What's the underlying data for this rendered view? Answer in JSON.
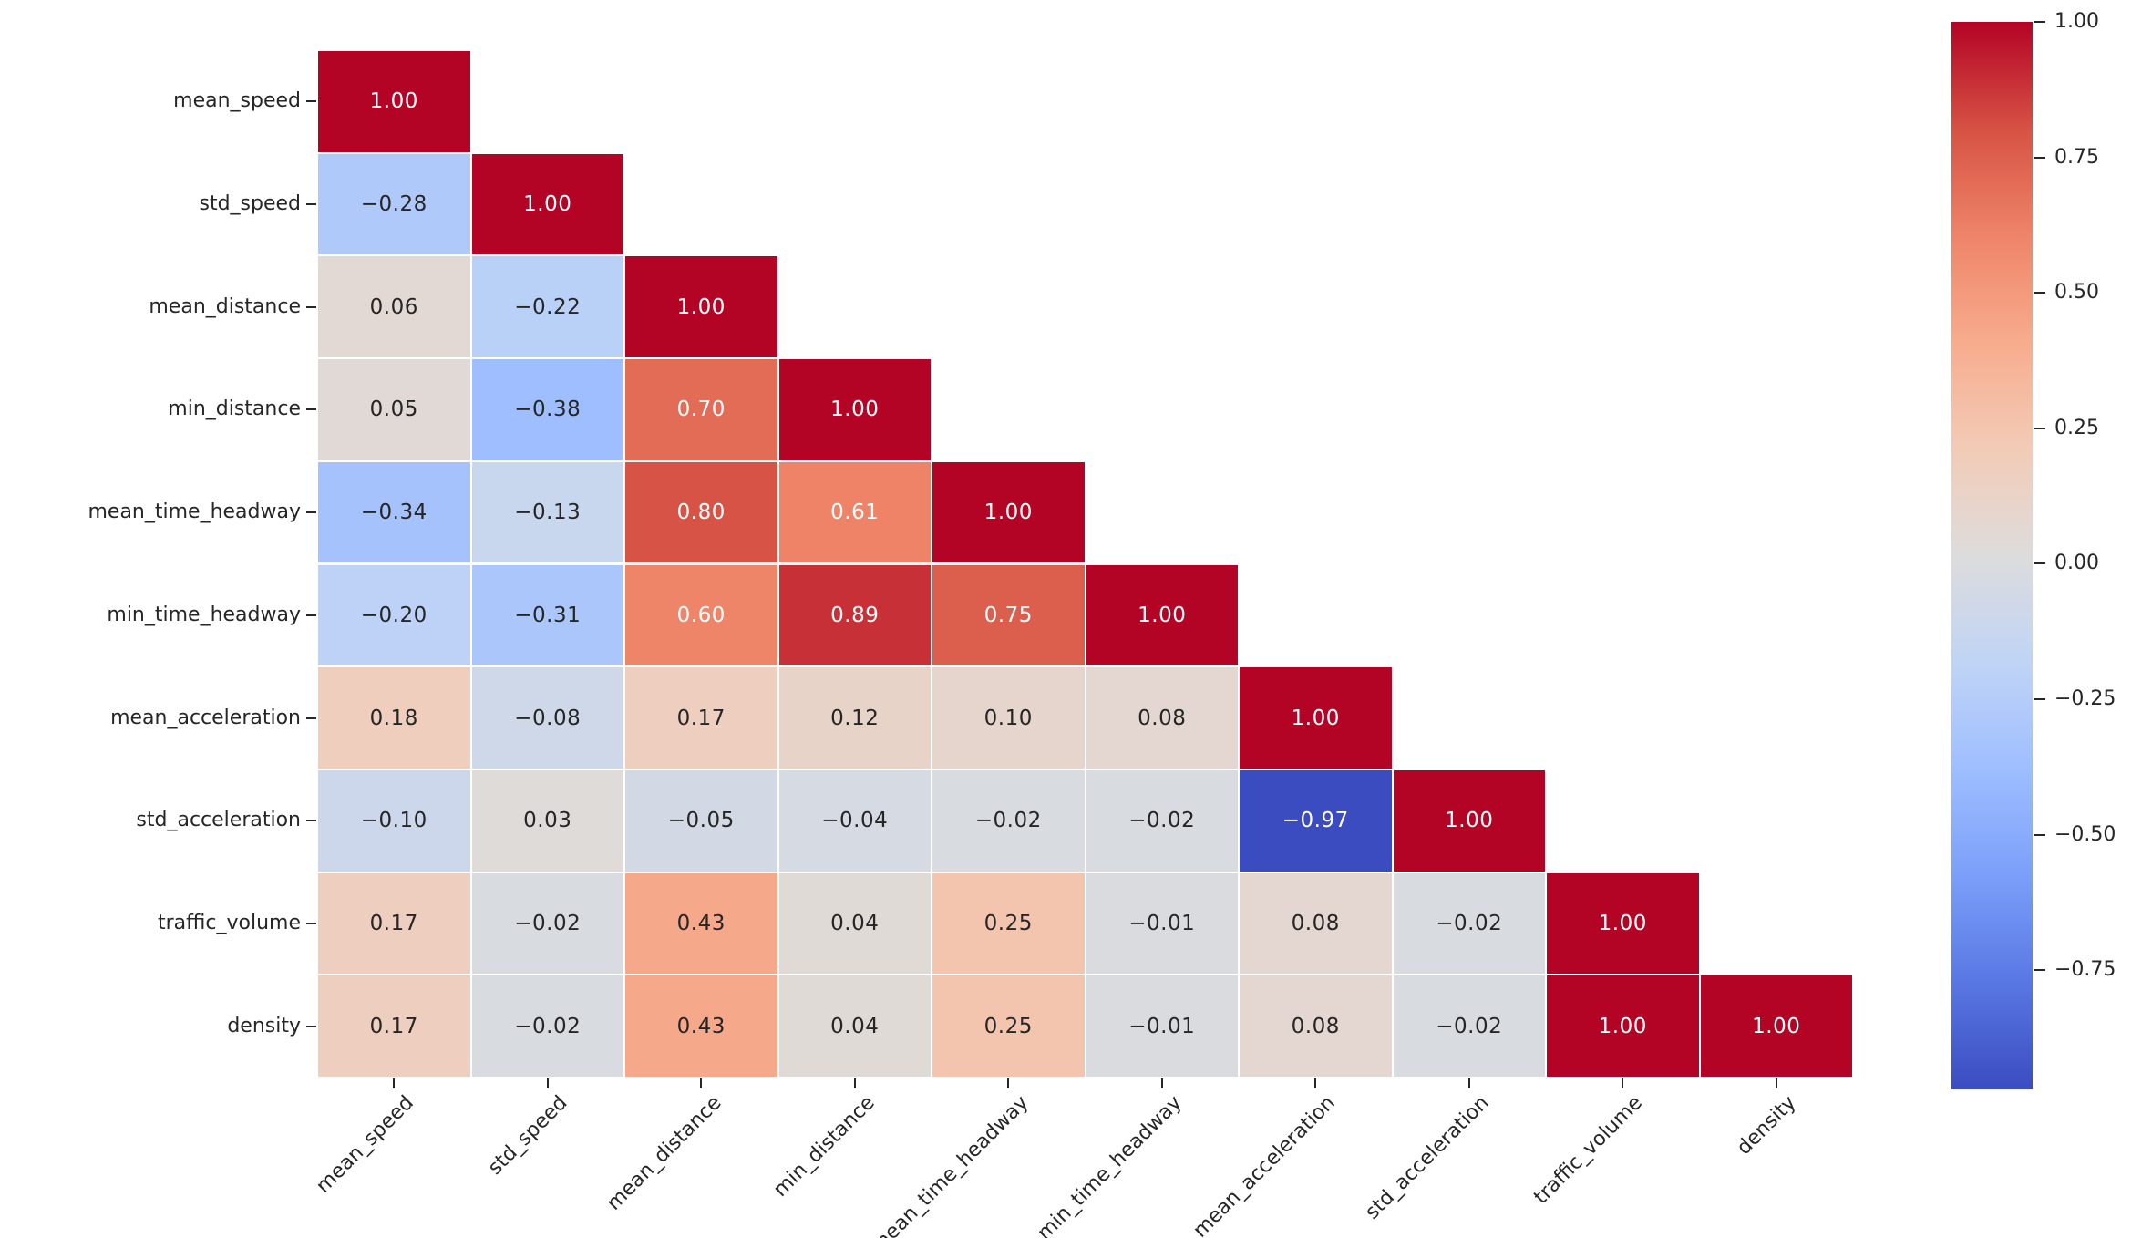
{
  "chart_data": {
    "type": "heatmap",
    "subtype": "correlation-matrix-lower-triangle",
    "title": "",
    "variables": [
      "mean_speed",
      "std_speed",
      "mean_distance",
      "min_distance",
      "mean_time_headway",
      "min_time_headway",
      "mean_acceleration",
      "std_acceleration",
      "traffic_volume",
      "density"
    ],
    "matrix": [
      [
        1.0
      ],
      [
        -0.28,
        1.0
      ],
      [
        0.06,
        -0.22,
        1.0
      ],
      [
        0.05,
        -0.38,
        0.7,
        1.0
      ],
      [
        -0.34,
        -0.13,
        0.8,
        0.61,
        1.0
      ],
      [
        -0.2,
        -0.31,
        0.6,
        0.89,
        0.75,
        1.0
      ],
      [
        0.18,
        -0.08,
        0.17,
        0.12,
        0.1,
        0.08,
        1.0
      ],
      [
        -0.1,
        0.03,
        -0.05,
        -0.04,
        -0.02,
        -0.02,
        -0.97,
        1.0
      ],
      [
        0.17,
        -0.02,
        0.43,
        0.04,
        0.25,
        -0.01,
        0.08,
        -0.02,
        1.0
      ],
      [
        0.17,
        -0.02,
        0.43,
        0.04,
        0.25,
        -0.01,
        0.08,
        -0.02,
        1.0,
        1.0
      ]
    ],
    "mask": "upper-triangle-hidden",
    "annotation_decimals": 2,
    "colormap": "coolwarm",
    "vmin": -0.97,
    "vmax": 1.0,
    "grid": "white-lines",
    "legend_position": "right-colorbar",
    "colorbar_ticks": [
      1.0,
      0.75,
      0.5,
      0.25,
      0.0,
      -0.25,
      -0.5,
      -0.75
    ]
  },
  "colors": {
    "background": "#ffffff",
    "grid_line": "#ffffff",
    "annotation_dark": "#262626",
    "annotation_light": "#ffffff",
    "tick_mark": "#262626",
    "colormap_stops": [
      "#3b4cc0",
      "#5977e3",
      "#7b9ff9",
      "#9ebeff",
      "#c0d4f5",
      "#dddcdc",
      "#f2cbb7",
      "#f7ac8e",
      "#ee8468",
      "#d65244",
      "#b40426"
    ]
  }
}
